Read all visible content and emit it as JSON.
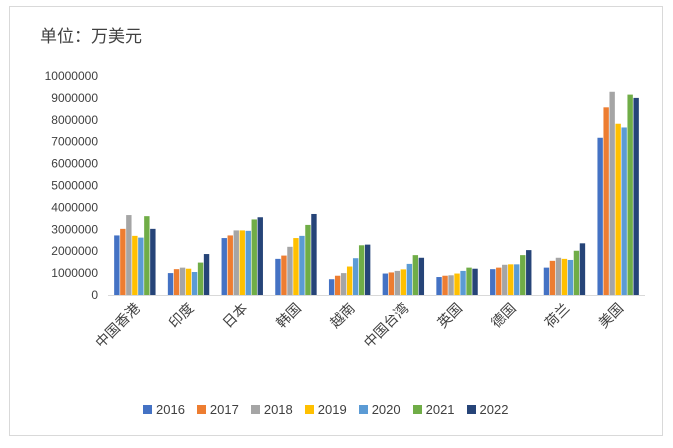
{
  "unit_label": "单位：万美元",
  "chart_data": {
    "type": "bar",
    "title": "",
    "xlabel": "",
    "ylabel": "",
    "ylim": [
      0,
      10000000
    ],
    "yticks": [
      0,
      1000000,
      2000000,
      3000000,
      4000000,
      5000000,
      6000000,
      7000000,
      8000000,
      9000000,
      10000000
    ],
    "categories": [
      "中国香港",
      "印度",
      "日本",
      "韩国",
      "越南",
      "中国台湾",
      "英国",
      "德国",
      "荷兰",
      "美国"
    ],
    "series": [
      {
        "name": "2016",
        "color": "#4472c4",
        "values": [
          2720000,
          1000000,
          2600000,
          1650000,
          720000,
          980000,
          820000,
          1180000,
          1250000,
          7180000
        ]
      },
      {
        "name": "2017",
        "color": "#ed7d31",
        "values": [
          3020000,
          1180000,
          2720000,
          1800000,
          880000,
          1030000,
          880000,
          1250000,
          1560000,
          8570000
        ]
      },
      {
        "name": "2018",
        "color": "#a5a5a5",
        "values": [
          3650000,
          1250000,
          2950000,
          2200000,
          1000000,
          1100000,
          900000,
          1380000,
          1700000,
          9280000
        ]
      },
      {
        "name": "2019",
        "color": "#ffc000",
        "values": [
          2700000,
          1200000,
          2950000,
          2600000,
          1300000,
          1170000,
          980000,
          1400000,
          1650000,
          7820000
        ]
      },
      {
        "name": "2020",
        "color": "#5b9bd5",
        "values": [
          2620000,
          1050000,
          2930000,
          2700000,
          1680000,
          1420000,
          1100000,
          1400000,
          1600000,
          7650000
        ]
      },
      {
        "name": "2021",
        "color": "#70ad47",
        "values": [
          3600000,
          1480000,
          3450000,
          3200000,
          2270000,
          1820000,
          1250000,
          1820000,
          2020000,
          9150000
        ]
      },
      {
        "name": "2022",
        "color": "#264478",
        "values": [
          3020000,
          1870000,
          3550000,
          3700000,
          2300000,
          1700000,
          1200000,
          2050000,
          2360000,
          9000000
        ]
      }
    ],
    "grid": false,
    "legend_position": "bottom"
  }
}
